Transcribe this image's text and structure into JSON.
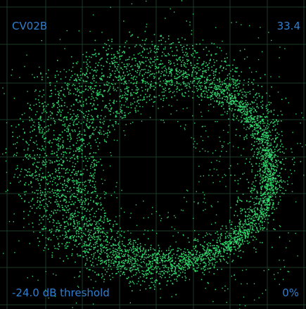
{
  "scope": {
    "device_label": "CV02B",
    "peak_value": "33.4",
    "threshold_label": "-24.0 dB threshold",
    "percent_label": "0%"
  },
  "colors": {
    "background": "#000000",
    "grid": "#1d3a28",
    "trace": "#2fd36a",
    "text": "#2f7fd0"
  }
}
